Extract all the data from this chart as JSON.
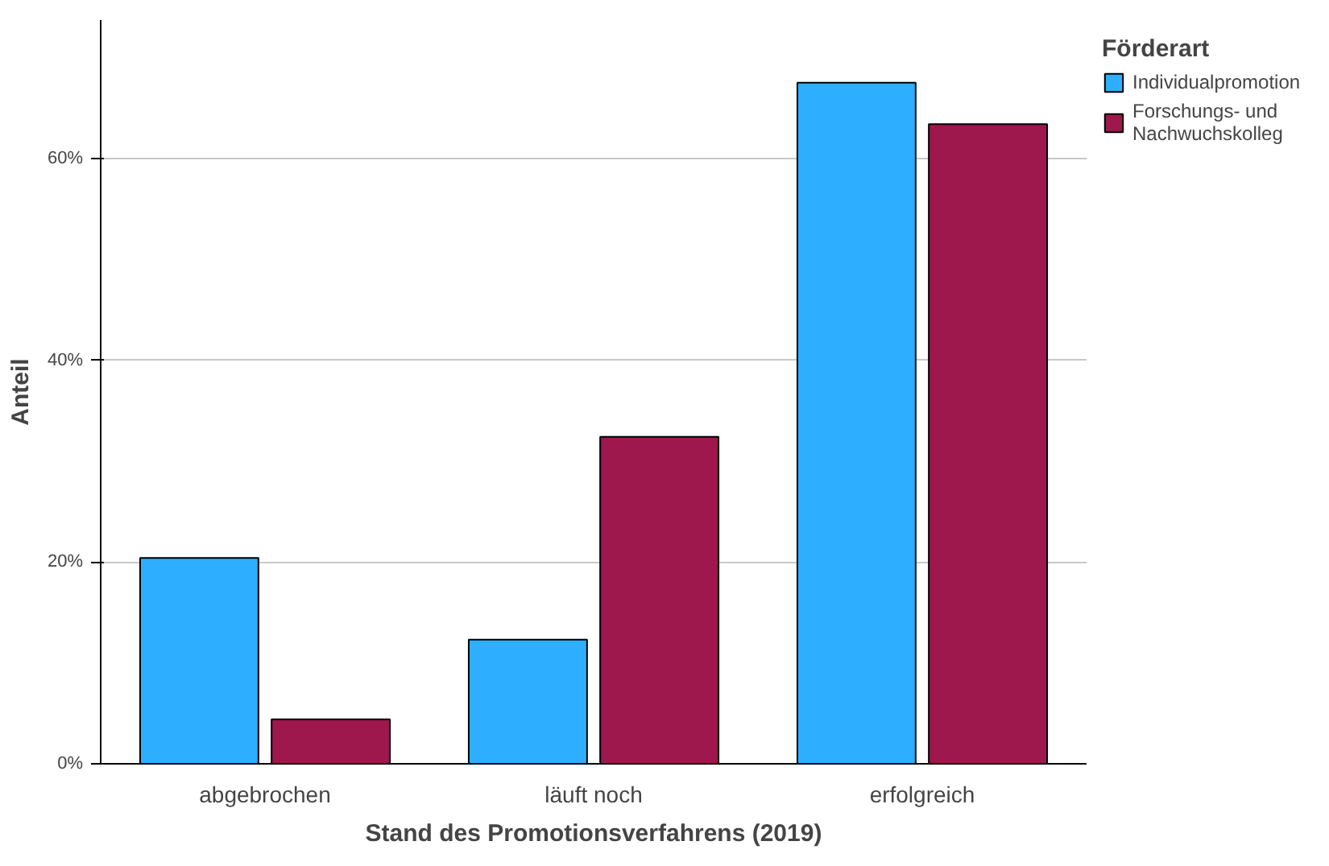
{
  "chart_data": {
    "type": "bar",
    "xlabel": "Stand des Promotionsverfahrens (2019)",
    "ylabel": "Anteil",
    "legend_title": "Förderart",
    "categories": [
      "abgebrochen",
      "läuft noch",
      "erfolgreich"
    ],
    "series": [
      {
        "name": "Individualpromotion",
        "color": "#2eaeff",
        "values": [
          20.4,
          12.3,
          67.5
        ]
      },
      {
        "name": "Forschungs- und Nachwuchskolleg",
        "color": "#9e174d",
        "values": [
          4.4,
          32.4,
          63.4
        ]
      }
    ],
    "ylim": [
      0,
      73.7
    ],
    "yticks": [
      {
        "value": 0,
        "label": "0%"
      },
      {
        "value": 20,
        "label": "20%"
      },
      {
        "value": 40,
        "label": "40%"
      },
      {
        "value": 60,
        "label": "60%"
      }
    ],
    "grid": "y",
    "legend": "top right"
  }
}
